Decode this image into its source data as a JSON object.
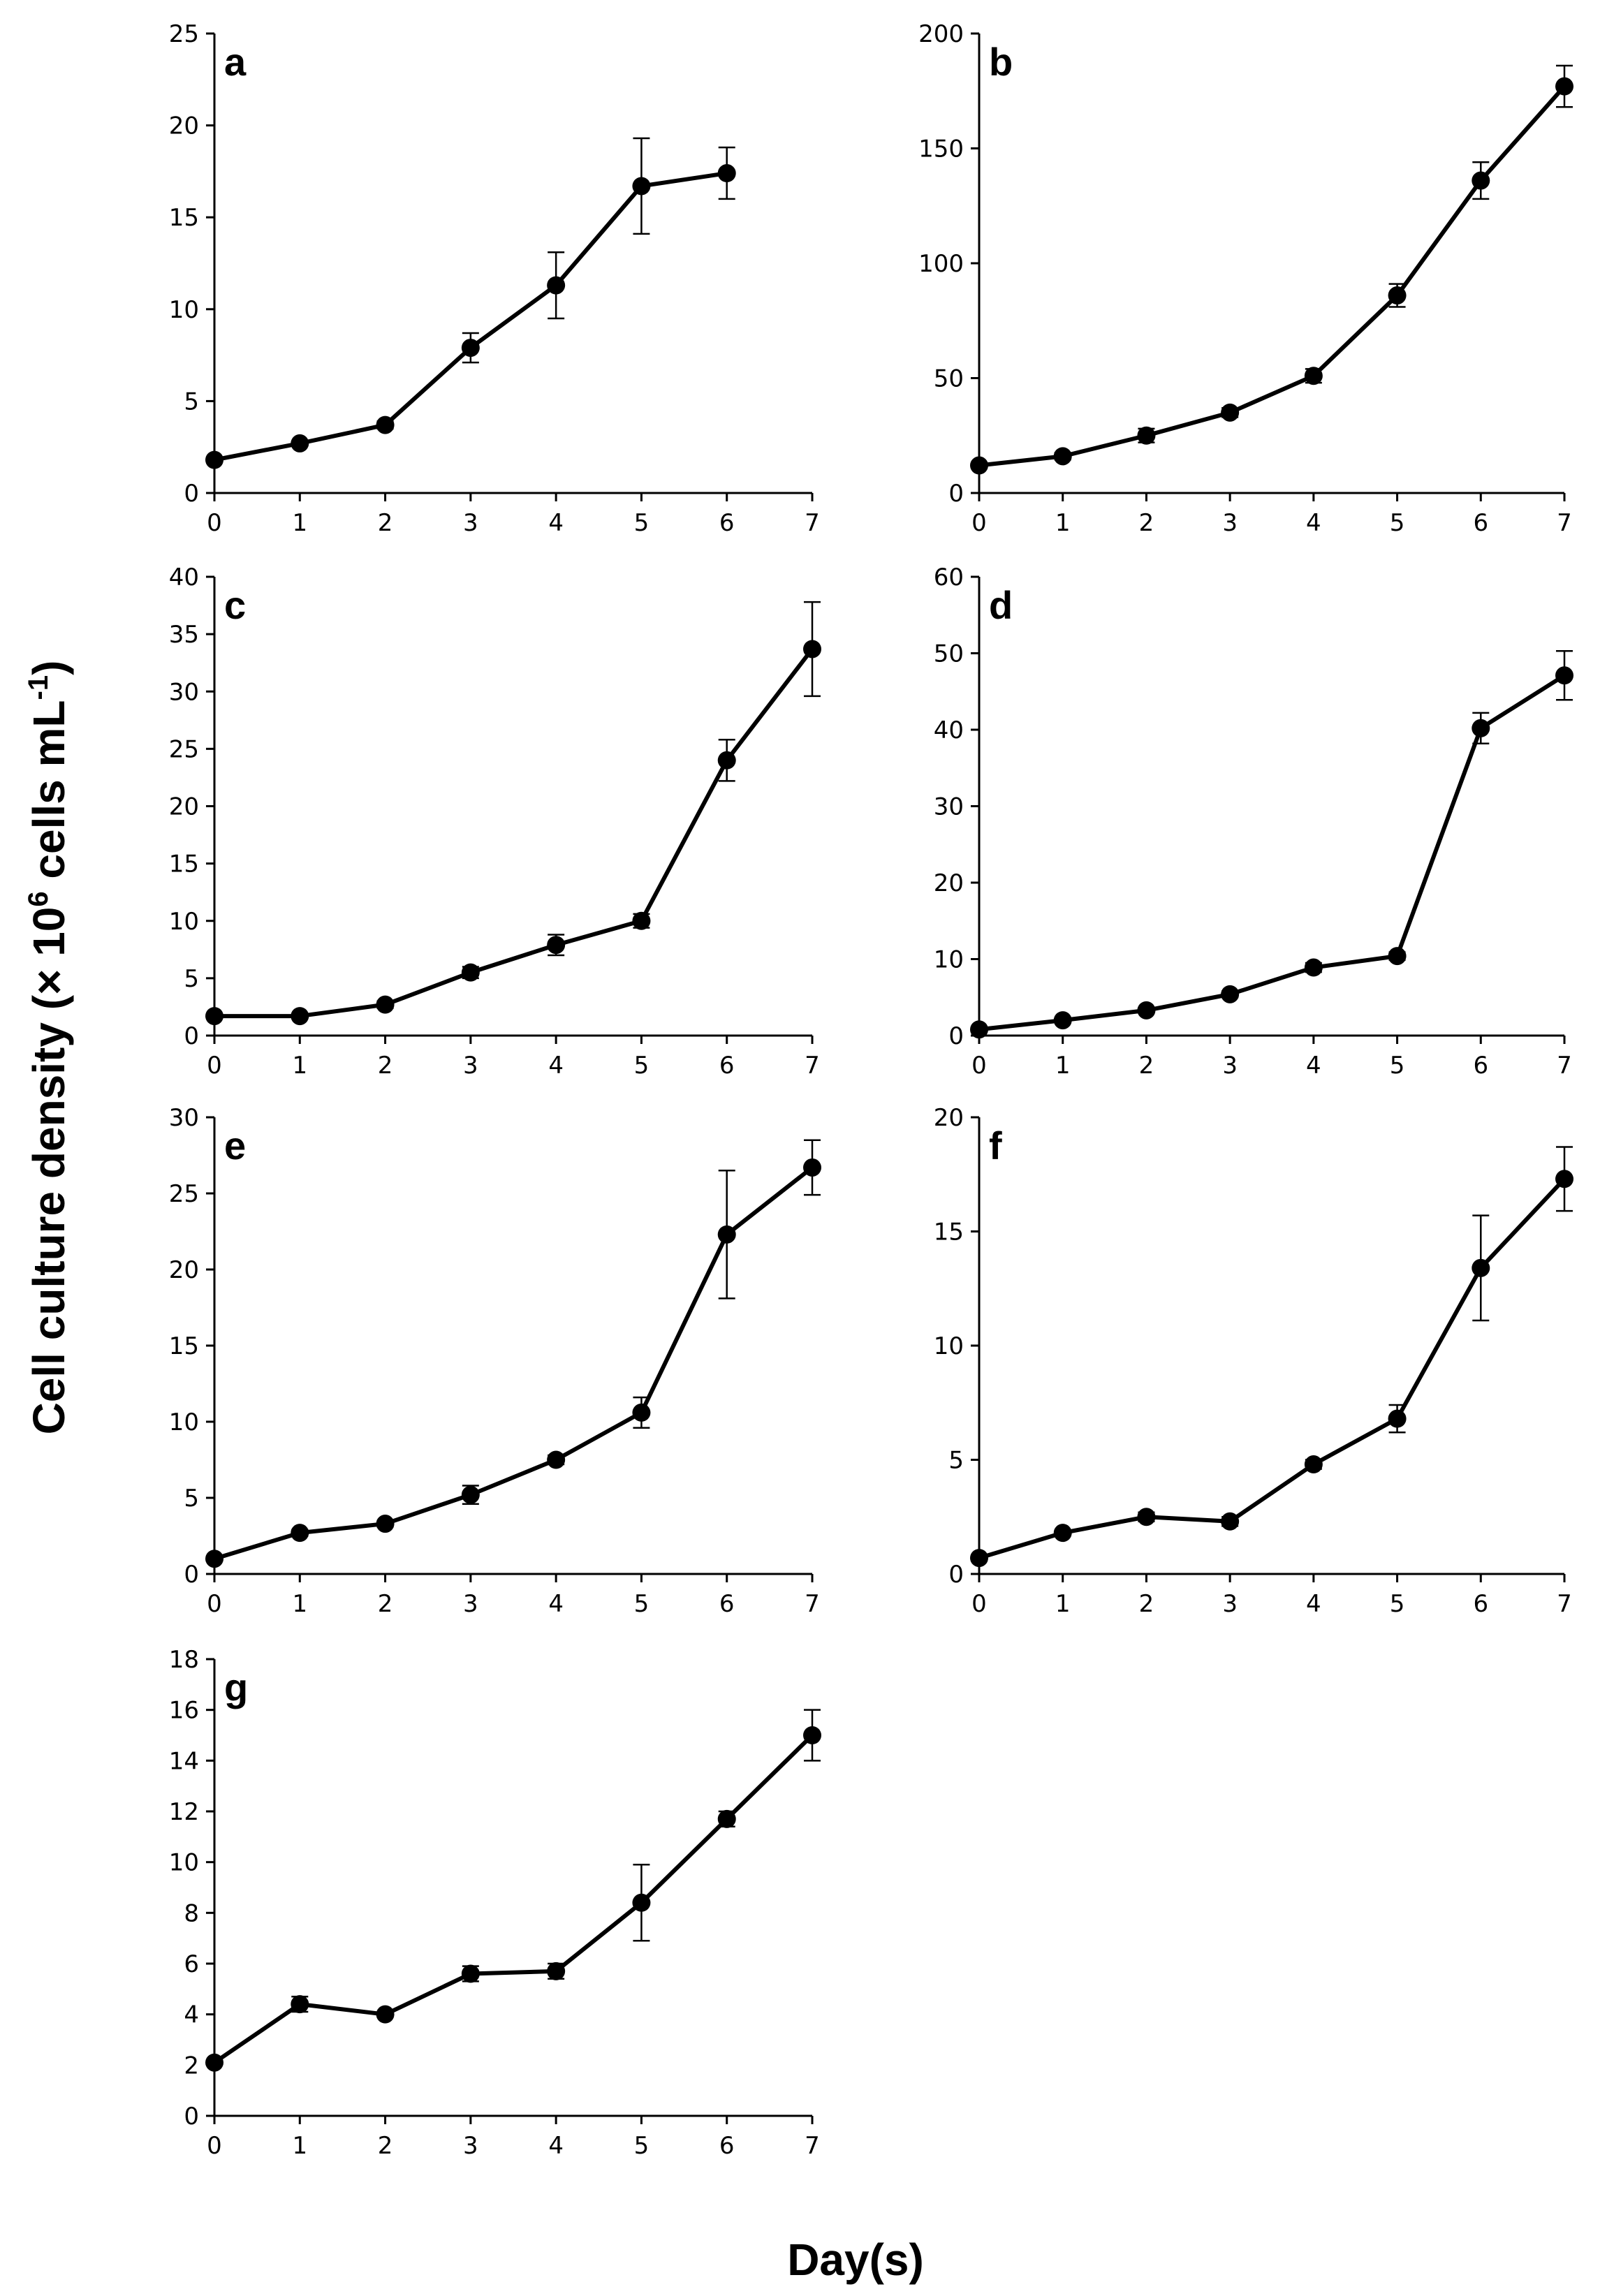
{
  "figure": {
    "ylabel_main": "Cell culture density (× 10",
    "ylabel_sup1": "6",
    "ylabel_mid": " cells mL",
    "ylabel_sup2": "-1",
    "ylabel_end": ")",
    "xlabel": "Day(s)"
  },
  "chart_data": [
    {
      "type": "line",
      "label": "a",
      "xlabel": "Day(s)",
      "ylabel": "Cell culture density (× 10^6 cells mL^-1)",
      "x": [
        0,
        1,
        2,
        3,
        4,
        5,
        6
      ],
      "values": [
        1.8,
        2.7,
        3.7,
        7.9,
        11.3,
        16.7,
        17.4
      ],
      "errors": [
        0.1,
        0.1,
        0.2,
        0.8,
        1.8,
        2.6,
        1.4
      ],
      "xlim": [
        0,
        7
      ],
      "ylim": [
        0,
        25
      ],
      "yticks": [
        0,
        5,
        10,
        15,
        20,
        25
      ],
      "xticks": [
        0,
        1,
        2,
        3,
        4,
        5,
        6,
        7
      ]
    },
    {
      "type": "line",
      "label": "b",
      "xlabel": "Day(s)",
      "ylabel": "Cell culture density (× 10^6 cells mL^-1)",
      "x": [
        0,
        1,
        2,
        3,
        4,
        5,
        6,
        7
      ],
      "values": [
        12,
        16,
        25,
        35,
        51,
        86,
        136,
        177
      ],
      "errors": [
        1,
        1.5,
        3,
        2,
        3,
        5,
        8,
        9
      ],
      "xlim": [
        0,
        7
      ],
      "ylim": [
        0,
        200
      ],
      "yticks": [
        0,
        50,
        100,
        150,
        200
      ],
      "xticks": [
        0,
        1,
        2,
        3,
        4,
        5,
        6,
        7
      ]
    },
    {
      "type": "line",
      "label": "c",
      "xlabel": "Day(s)",
      "ylabel": "Cell culture density (× 10^6 cells mL^-1)",
      "x": [
        0,
        1,
        2,
        3,
        4,
        5,
        6,
        7
      ],
      "values": [
        1.7,
        1.7,
        2.7,
        5.5,
        7.9,
        10.0,
        24.0,
        33.7
      ],
      "errors": [
        0.1,
        0.1,
        0.3,
        0.5,
        0.9,
        0.6,
        1.8,
        4.1
      ],
      "xlim": [
        0,
        7
      ],
      "ylim": [
        0,
        40
      ],
      "yticks": [
        0,
        5,
        10,
        15,
        20,
        25,
        30,
        35,
        40
      ],
      "xticks": [
        0,
        1,
        2,
        3,
        4,
        5,
        6,
        7
      ]
    },
    {
      "type": "line",
      "label": "d",
      "xlabel": "Day(s)",
      "ylabel": "Cell culture density (× 10^6 cells mL^-1)",
      "x": [
        0,
        1,
        2,
        3,
        4,
        5,
        6,
        7
      ],
      "values": [
        0.8,
        2.0,
        3.3,
        5.4,
        8.9,
        10.4,
        40.2,
        47.1
      ],
      "errors": [
        0.2,
        0.3,
        0.3,
        0.4,
        0.6,
        0.5,
        2.0,
        3.2
      ],
      "xlim": [
        0,
        7
      ],
      "ylim": [
        0,
        60
      ],
      "yticks": [
        0,
        10,
        20,
        30,
        40,
        50,
        60
      ],
      "xticks": [
        0,
        1,
        2,
        3,
        4,
        5,
        6,
        7
      ]
    },
    {
      "type": "line",
      "label": "e",
      "xlabel": "Day(s)",
      "ylabel": "Cell culture density (× 10^6 cells mL^-1)",
      "x": [
        0,
        1,
        2,
        3,
        4,
        5,
        6,
        7
      ],
      "values": [
        1.0,
        2.7,
        3.3,
        5.2,
        7.5,
        10.6,
        22.3,
        26.7
      ],
      "errors": [
        0.1,
        0.2,
        0.2,
        0.6,
        0.3,
        1.0,
        4.2,
        1.8
      ],
      "xlim": [
        0,
        7
      ],
      "ylim": [
        0,
        30
      ],
      "yticks": [
        0,
        5,
        10,
        15,
        20,
        25,
        30
      ],
      "xticks": [
        0,
        1,
        2,
        3,
        4,
        5,
        6,
        7
      ]
    },
    {
      "type": "line",
      "label": "f",
      "xlabel": "Day(s)",
      "ylabel": "Cell culture density (× 10^6 cells mL^-1)",
      "x": [
        0,
        1,
        2,
        3,
        4,
        5,
        6,
        7
      ],
      "values": [
        0.7,
        1.8,
        2.5,
        2.3,
        4.8,
        6.8,
        13.4,
        17.3
      ],
      "errors": [
        0.1,
        0.1,
        0.2,
        0.2,
        0.2,
        0.6,
        2.3,
        1.4
      ],
      "xlim": [
        0,
        7
      ],
      "ylim": [
        0,
        20
      ],
      "yticks": [
        0,
        5,
        10,
        15,
        20
      ],
      "xticks": [
        0,
        1,
        2,
        3,
        4,
        5,
        6,
        7
      ]
    },
    {
      "type": "line",
      "label": "g",
      "xlabel": "Day(s)",
      "ylabel": "Cell culture density (× 10^6 cells mL^-1)",
      "x": [
        0,
        1,
        2,
        3,
        4,
        5,
        6,
        7
      ],
      "values": [
        2.1,
        4.4,
        4.0,
        5.6,
        5.7,
        8.4,
        11.7,
        15.0
      ],
      "errors": [
        0.1,
        0.3,
        0.1,
        0.3,
        0.3,
        1.5,
        0.3,
        1.0
      ],
      "xlim": [
        0,
        7
      ],
      "ylim": [
        0,
        18
      ],
      "yticks": [
        0,
        2,
        4,
        6,
        8,
        10,
        12,
        14,
        16,
        18
      ],
      "xticks": [
        0,
        1,
        2,
        3,
        4,
        5,
        6,
        7
      ]
    }
  ]
}
